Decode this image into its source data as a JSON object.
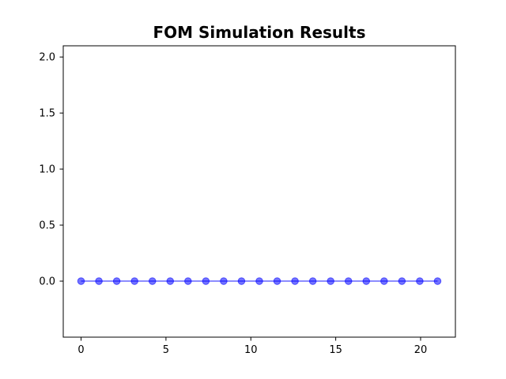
{
  "chart_data": {
    "type": "line",
    "title": "FOM Simulation Results",
    "xlabel": "",
    "ylabel": "",
    "xlim": [
      -1.05,
      22.05
    ],
    "ylim": [
      -0.5,
      2.1
    ],
    "xticks": [
      0,
      5,
      10,
      15,
      20
    ],
    "xtick_labels": [
      "0",
      "5",
      "10",
      "15",
      "20"
    ],
    "yticks": [
      0.0,
      0.5,
      1.0,
      1.5,
      2.0
    ],
    "ytick_labels": [
      "0.0",
      "0.5",
      "1.0",
      "1.5",
      "2.0"
    ],
    "grid": false,
    "legend": "none",
    "series": [
      {
        "color": "#0000ff",
        "marker": "circle",
        "x": [
          0,
          1.05,
          2.1,
          3.15,
          4.2,
          5.25,
          6.3,
          7.35,
          8.4,
          9.45,
          10.5,
          11.55,
          12.6,
          13.65,
          14.7,
          15.75,
          16.8,
          17.85,
          18.9,
          19.95,
          21.0
        ],
        "y": [
          0,
          0,
          0,
          0,
          0,
          0,
          0,
          0,
          0,
          0,
          0,
          0,
          0,
          0,
          0,
          0,
          0,
          0,
          0,
          0,
          0
        ]
      }
    ]
  }
}
